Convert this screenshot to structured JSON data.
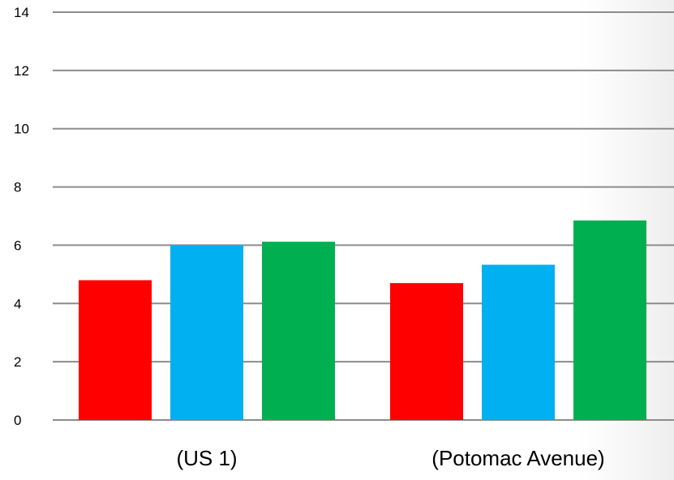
{
  "chart_data": {
    "type": "bar",
    "categories": [
      "(US 1)",
      "(Potomac Avenue)"
    ],
    "series": [
      {
        "values": [
          4.8,
          4.7
        ],
        "color": "#ff0000"
      },
      {
        "values": [
          6.0,
          5.33
        ],
        "color": "#00b0f0"
      },
      {
        "values": [
          6.12,
          6.85
        ],
        "color": "#00b050"
      }
    ],
    "y_ticks": [
      "0",
      "2",
      "4",
      "6",
      "8",
      "10",
      "12",
      "14"
    ],
    "ylim": [
      0,
      14
    ],
    "grid": true,
    "legend": "none"
  }
}
